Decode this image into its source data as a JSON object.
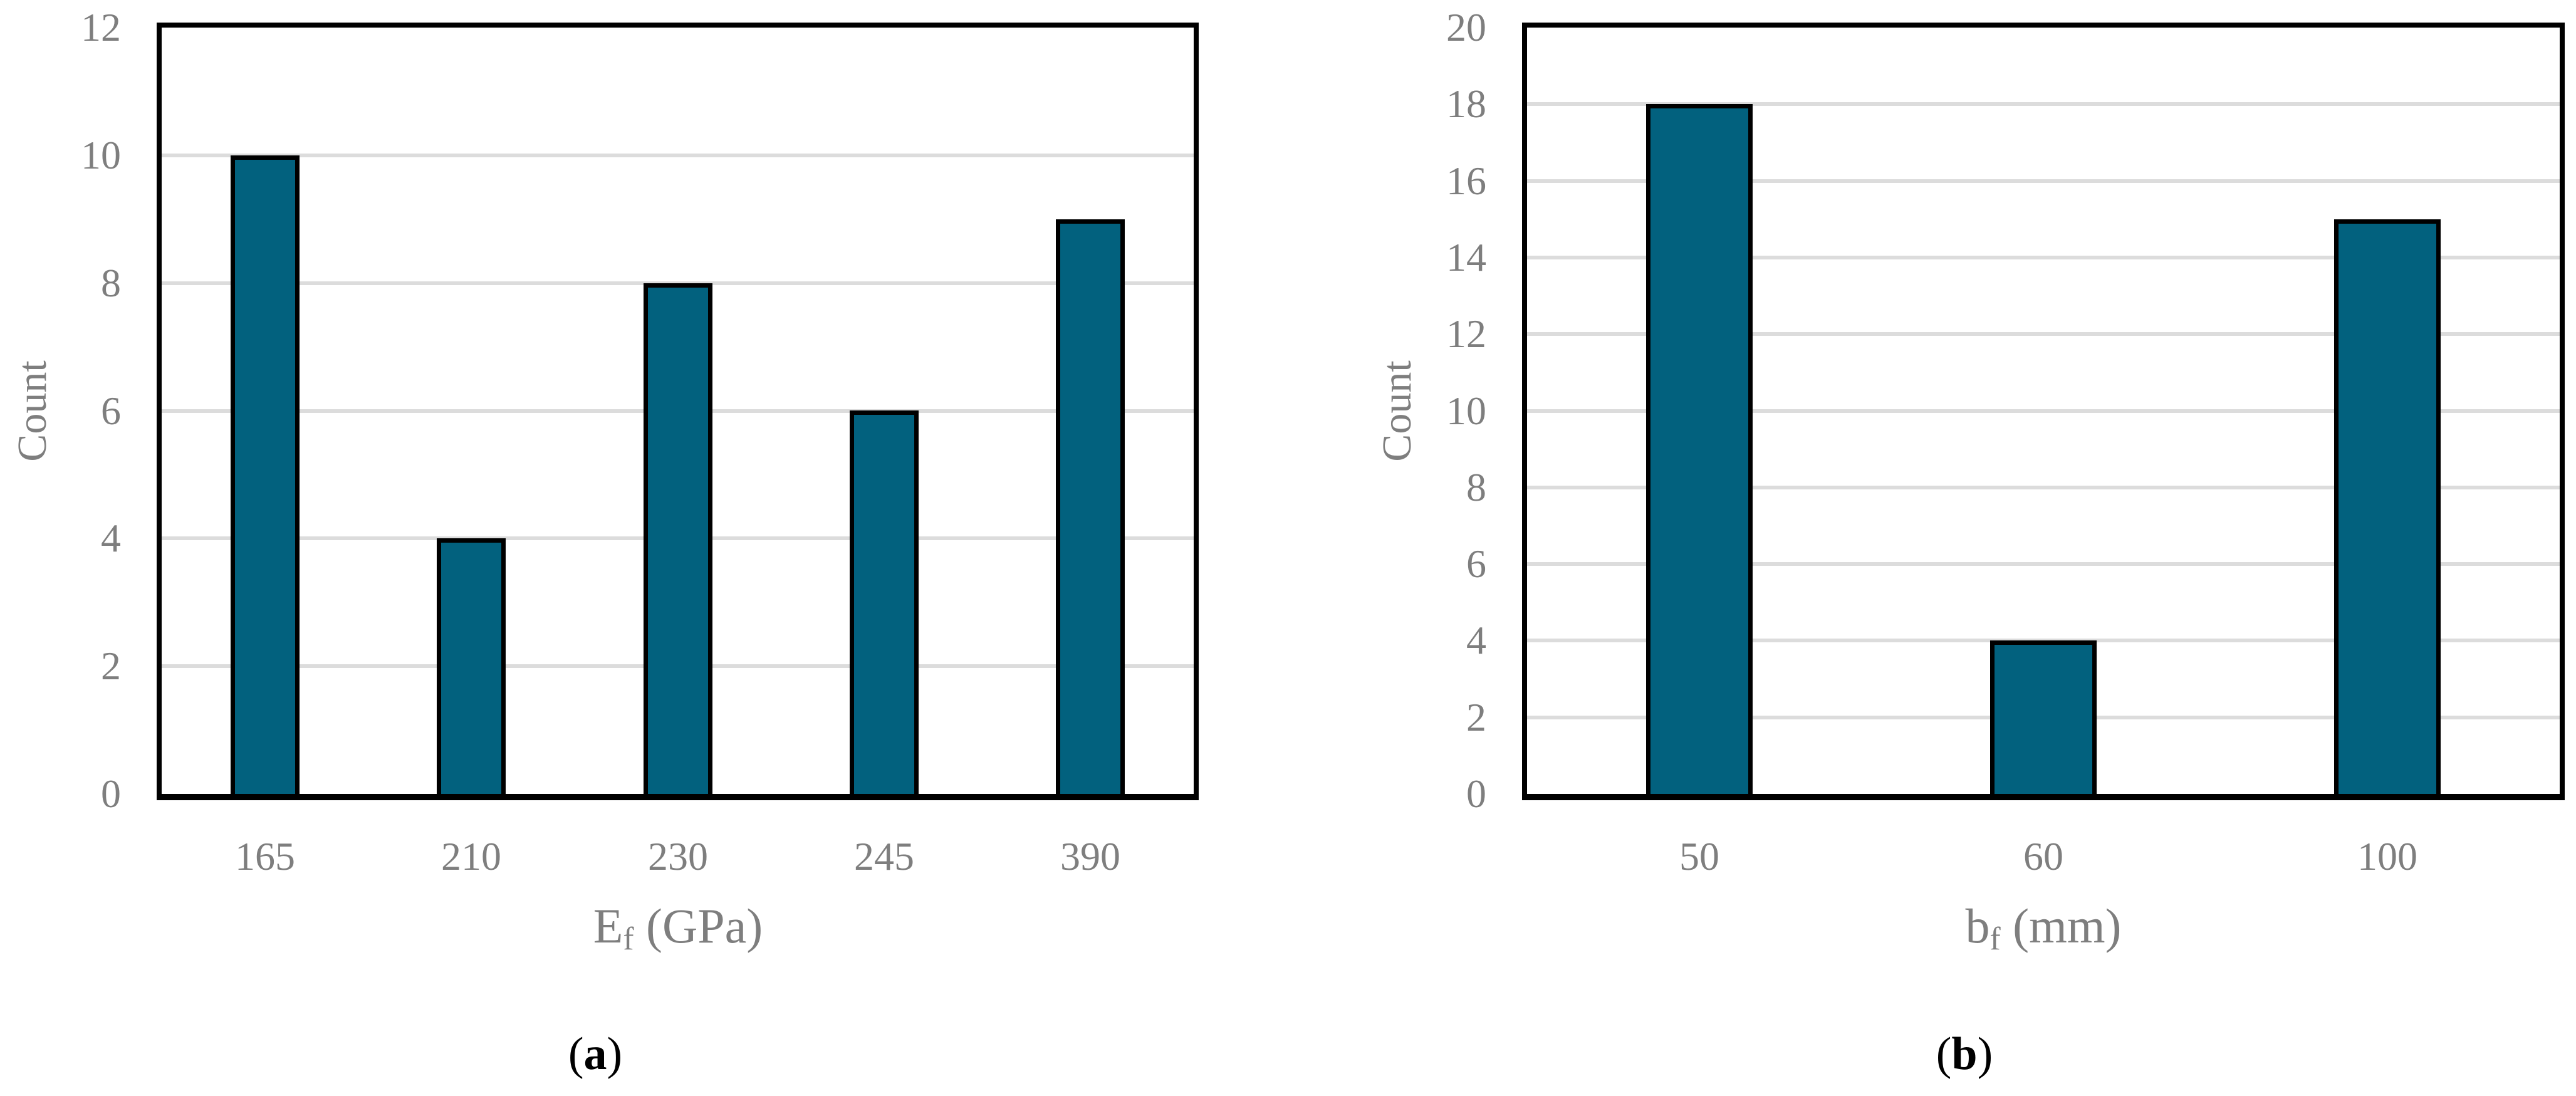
{
  "style": {
    "background": "#FFFFFF",
    "bar_fill": "#02617E",
    "bar_outline": "#000000",
    "gridline_color": "#DCDCDC",
    "plot_border_color": "#000000",
    "tick_label_color": "#7E7E7E",
    "axis_title_color": "#7E7E7E",
    "caption_color": "#000000"
  },
  "chart_data": [
    {
      "type": "bar",
      "panel": "a",
      "ylabel": "Count",
      "xlabel": {
        "base": "E",
        "sub": "f",
        "unit": " (GPa)",
        "full": "Ef (GPa)"
      },
      "categories": [
        "165",
        "210",
        "230",
        "245",
        "390"
      ],
      "values": [
        10,
        4,
        8,
        6,
        9
      ],
      "ylim": [
        0,
        12
      ],
      "ytick_step": 2,
      "grid": "horizontal",
      "legend": "none",
      "caption": "(a)",
      "caption_parts": {
        "open": "(",
        "letter": "a",
        "close": ")"
      }
    },
    {
      "type": "bar",
      "panel": "b",
      "ylabel": "Count",
      "xlabel": {
        "base": "b",
        "sub": "f",
        "unit": " (mm)",
        "full": "bf (mm)"
      },
      "categories": [
        "50",
        "60",
        "100"
      ],
      "values": [
        18,
        4,
        15
      ],
      "ylim": [
        0,
        20
      ],
      "ytick_step": 2,
      "grid": "horizontal",
      "legend": "none",
      "caption": "(b)",
      "caption_parts": {
        "open": "(",
        "letter": "b",
        "close": ")"
      }
    }
  ]
}
